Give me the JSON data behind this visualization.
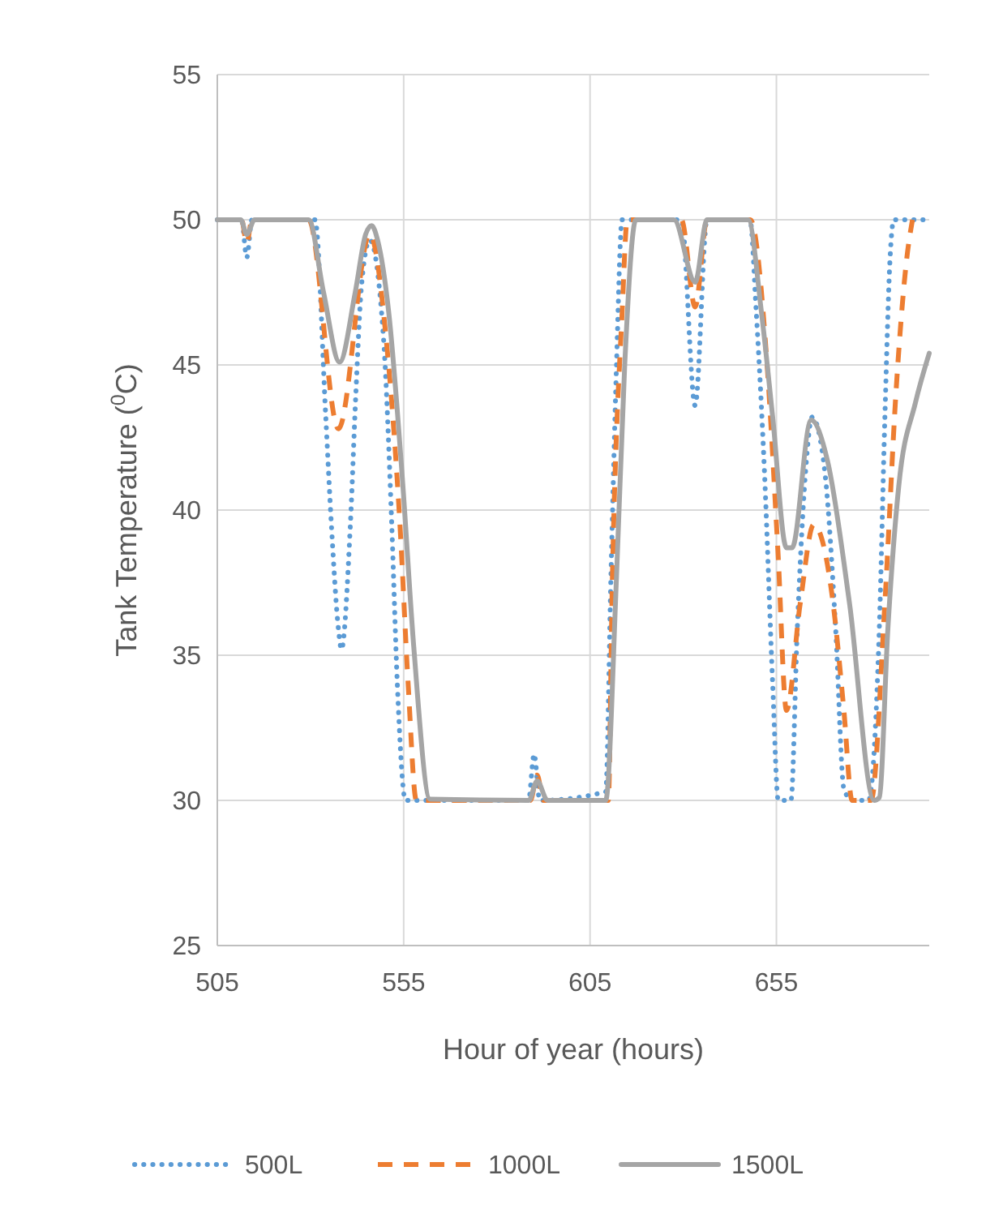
{
  "chart_data": {
    "type": "line",
    "xlabel": "Hour of year (hours)",
    "ylabel": "Tank Temperature ($^{0}$C)",
    "xlim": [
      505,
      696
    ],
    "xticks": [
      505,
      555,
      605,
      655
    ],
    "ylim": [
      25,
      55
    ],
    "yticks": [
      25,
      30,
      35,
      40,
      45,
      50,
      55
    ],
    "grid": true,
    "legend": "bottom",
    "marker": "none",
    "series": [
      {
        "name": "500L",
        "color": "#5b9bd5",
        "line_style": "dotted",
        "x": [
          505,
          511.5,
          512.9,
          514.3,
          515.5,
          531.2,
          534.1,
          535.6,
          537.5,
          538.3,
          540.7,
          542.2,
          543.7,
          545.9,
          549.6,
          551.8,
          553.3,
          555.5,
          588.5,
          590,
          591.5,
          609.2,
          610.6,
          612.1,
          613.6,
          629.5,
          633.2,
          636.4,
          647.9,
          649.6,
          651.8,
          654,
          655.5,
          658.9,
          660.6,
          662.8,
          664.6,
          668,
          670.9,
          673.1,
          675.3,
          679.7,
          682.6,
          684.1,
          685.5,
          686.5,
          694.4
        ],
        "values": [
          50,
          50,
          48.7,
          50,
          50,
          50,
          43.2,
          39.5,
          35.9,
          35.2,
          39.5,
          44.1,
          47.75,
          49.3,
          45.9,
          39.5,
          34,
          30,
          30,
          31.6,
          30,
          30.3,
          37.7,
          45,
          50,
          50,
          43.6,
          50,
          50,
          46.8,
          41.3,
          34,
          30,
          30,
          35.9,
          41.3,
          43.2,
          41.3,
          35.9,
          30.4,
          30,
          30,
          35.9,
          43.2,
          48.7,
          50,
          50
        ]
      },
      {
        "name": "1000L",
        "color": "#ed7d31",
        "line_style": "dashed",
        "x": [
          505,
          511.5,
          512.9,
          514.3,
          515.5,
          529.5,
          537.5,
          545.9,
          550.3,
          554,
          556.2,
          558.4,
          589,
          590.8,
          592.5,
          609.9,
          611,
          613.6,
          615,
          629.5,
          633.2,
          636.4,
          648,
          652.5,
          655.4,
          657.7,
          661.4,
          665,
          667.2,
          670.2,
          673.1,
          675.3,
          680.4,
          684.1,
          687.1,
          690,
          691.5
        ],
        "values": [
          50,
          50,
          49.2,
          50,
          50,
          50,
          42.8,
          49.5,
          45.9,
          39.5,
          34,
          30,
          30,
          30.87,
          30,
          30,
          37.7,
          46.8,
          50,
          50,
          47,
          50,
          50,
          45,
          38.6,
          33.1,
          36.8,
          39.5,
          39,
          36.8,
          33.1,
          30,
          30,
          36.8,
          44.1,
          48.7,
          50
        ]
      },
      {
        "name": "1500L",
        "color": "#a5a5a5",
        "line_style": "solid",
        "x": [
          505,
          511.3,
          512.9,
          515,
          529.5,
          533.5,
          537.8,
          542,
          544.8,
          546.4,
          548,
          551,
          554.7,
          557.7,
          562.1,
          588.6,
          590.8,
          593.6,
          609.2,
          612.1,
          614.3,
          617.3,
          627.5,
          633.2,
          636.4,
          647.4,
          651,
          654,
          657.7,
          659.2,
          664.3,
          668.7,
          674.6,
          681.2,
          682.6,
          684.9,
          687.8,
          692.3,
          696
        ],
        "values": [
          50,
          50,
          49.5,
          50,
          50,
          47.5,
          45.1,
          47.5,
          49.5,
          49.8,
          49.3,
          46.8,
          41,
          35.3,
          30.04,
          30,
          30.67,
          30,
          30,
          37.7,
          45,
          50,
          50,
          47.85,
          50,
          50,
          46.8,
          43.2,
          38.7,
          38.7,
          43.1,
          41.7,
          36.8,
          30,
          30.1,
          35.9,
          40.8,
          43.7,
          45.4
        ]
      }
    ]
  }
}
